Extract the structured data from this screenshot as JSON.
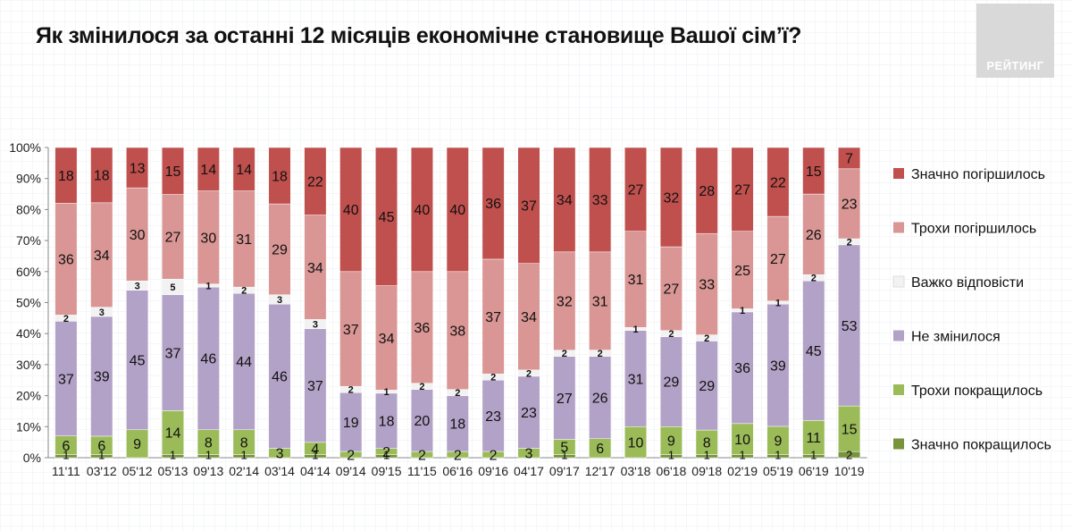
{
  "title": "Як змінилося за останні 12 місяців економічне становище Вашої сім’ї?",
  "logo_text": "РЕЙТИНГ",
  "colors": {
    "significantly_worse": "#c0504d",
    "slightly_worse": "#d99694",
    "hard_to_say": "#f2f2f2",
    "unchanged": "#b3a2c7",
    "slightly_better": "#9bbb59",
    "significantly_better": "#77933c"
  },
  "chart_data": {
    "type": "bar",
    "stacked": true,
    "percent_stacked": true,
    "title": "Як змінилося за останні 12 місяців економічне становище Вашої сім’ї?",
    "xlabel": "",
    "ylabel": "",
    "ylim": [
      0,
      100
    ],
    "y_ticks": [
      "0%",
      "10%",
      "20%",
      "30%",
      "40%",
      "50%",
      "60%",
      "70%",
      "80%",
      "90%",
      "100%"
    ],
    "legend_position": "right",
    "categories": [
      "11'11",
      "03'12",
      "05'12",
      "05'13",
      "09'13",
      "02'14",
      "03'14",
      "04'14",
      "09'14",
      "09'15",
      "11'15",
      "06'16",
      "09'16",
      "04'17",
      "09'17",
      "12'17",
      "03'18",
      "06'18",
      "09'18",
      "02'19",
      "05'19",
      "06'19",
      "10'19"
    ],
    "series": [
      {
        "name": "Значно покращилось",
        "key": "significantly_better",
        "values": [
          1,
          1,
          0,
          1,
          1,
          1,
          0,
          1,
          0,
          1,
          0,
          0,
          0,
          0,
          1,
          0,
          0,
          1,
          1,
          1,
          1,
          1,
          2
        ]
      },
      {
        "name": "Трохи покращилось",
        "key": "slightly_better",
        "values": [
          6,
          6,
          9,
          14,
          8,
          8,
          3,
          4,
          2,
          2,
          2,
          2,
          2,
          3,
          5,
          6,
          10,
          9,
          8,
          10,
          9,
          11,
          15
        ]
      },
      {
        "name": "Не змінилося",
        "key": "unchanged",
        "values": [
          37,
          39,
          45,
          37,
          46,
          44,
          46,
          37,
          19,
          18,
          20,
          18,
          23,
          23,
          27,
          26,
          31,
          29,
          29,
          36,
          39,
          45,
          53
        ]
      },
      {
        "name": "Важко відповісти",
        "key": "hard_to_say",
        "values": [
          2,
          3,
          3,
          5,
          1,
          2,
          3,
          3,
          2,
          1,
          2,
          2,
          2,
          2,
          2,
          2,
          1,
          2,
          2,
          1,
          1,
          2,
          2
        ]
      },
      {
        "name": "Трохи погіршилось",
        "key": "slightly_worse",
        "values": [
          36,
          34,
          30,
          27,
          30,
          31,
          29,
          34,
          37,
          34,
          36,
          38,
          37,
          34,
          32,
          31,
          31,
          27,
          33,
          25,
          27,
          26,
          23
        ]
      },
      {
        "name": "Значно погіршилось",
        "key": "significantly_worse",
        "values": [
          18,
          18,
          13,
          15,
          14,
          14,
          18,
          22,
          40,
          45,
          40,
          40,
          36,
          37,
          34,
          33,
          27,
          32,
          28,
          27,
          22,
          15,
          7
        ]
      }
    ]
  }
}
